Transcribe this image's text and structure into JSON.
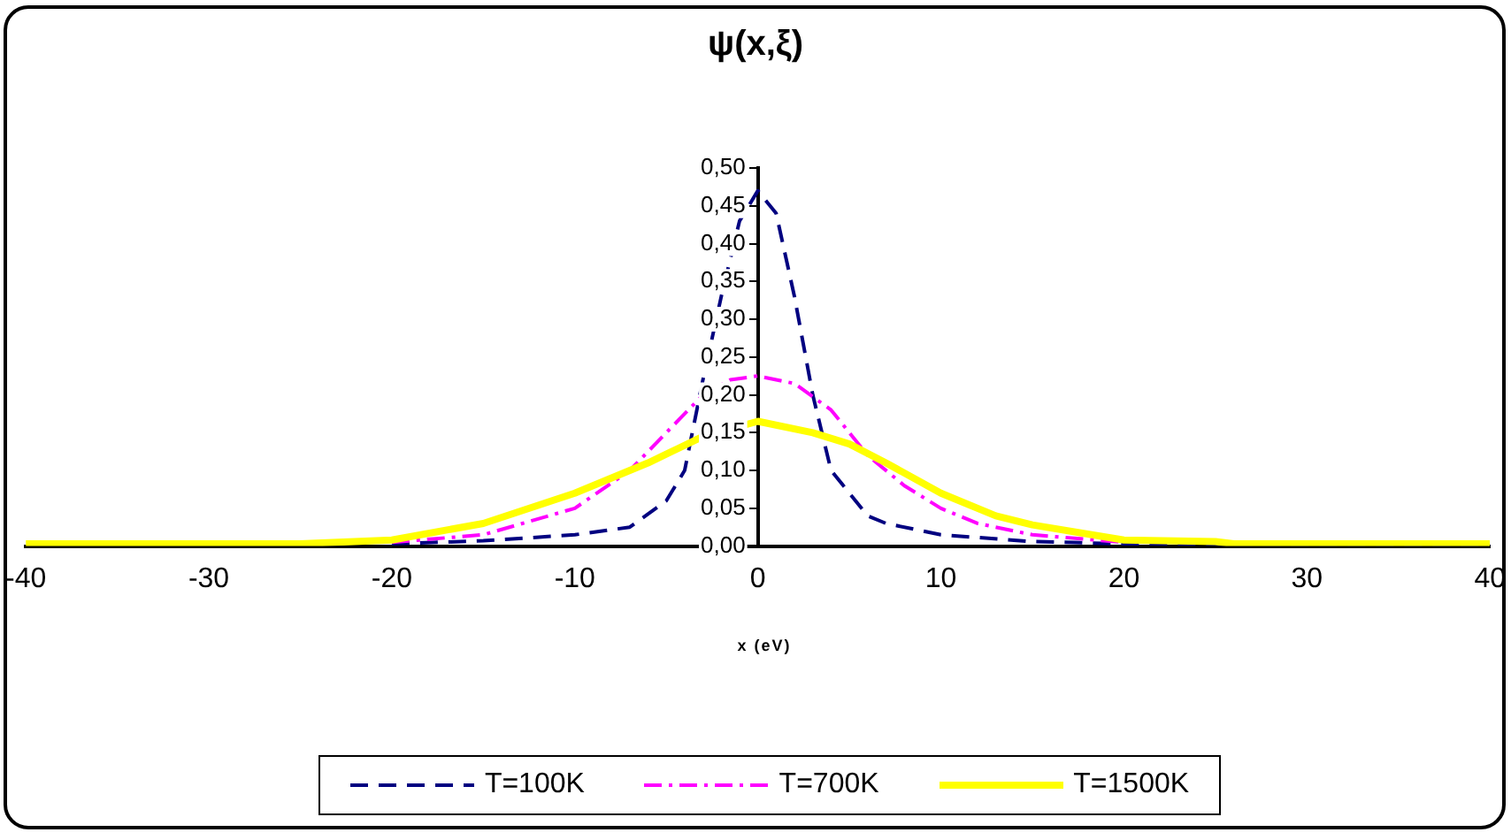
{
  "chart_data": {
    "type": "line",
    "title": "ψ(x,ξ)",
    "xlabel": "x (eV)",
    "xlim": [
      -40,
      40
    ],
    "xticks": [
      -40,
      -30,
      -20,
      -10,
      0,
      10,
      20,
      30,
      40
    ],
    "ylim": [
      0,
      0.5
    ],
    "yticks": [
      {
        "value": 0,
        "label": "0,00"
      },
      {
        "value": 0.05,
        "label": "0,05"
      },
      {
        "value": 0.1,
        "label": "0,10"
      },
      {
        "value": 0.15,
        "label": "0,15"
      },
      {
        "value": 0.2,
        "label": "0,20"
      },
      {
        "value": 0.25,
        "label": "0,25"
      },
      {
        "value": 0.3,
        "label": "0,30"
      },
      {
        "value": 0.35,
        "label": "0,35"
      },
      {
        "value": 0.4,
        "label": "0,40"
      },
      {
        "value": 0.45,
        "label": "0,45"
      },
      {
        "value": 0.5,
        "label": "0,50"
      }
    ],
    "grid": false,
    "legend": "bottom",
    "marker": "none",
    "series": [
      {
        "name": "T=100K",
        "color": "#000080",
        "line_style": "dashed",
        "x": [
          -20,
          -15,
          -10,
          -7,
          -5,
          -4,
          -3,
          -2,
          -1,
          0,
          1,
          2,
          3,
          4,
          5,
          6,
          7,
          10,
          15,
          20,
          40
        ],
        "values": [
          0.003,
          0.007,
          0.015,
          0.025,
          0.06,
          0.1,
          0.22,
          0.33,
          0.43,
          0.47,
          0.44,
          0.33,
          0.2,
          0.1,
          0.07,
          0.04,
          0.03,
          0.015,
          0.006,
          0.003,
          0.002
        ]
      },
      {
        "name": "T=700K",
        "color": "#ff00ff",
        "line_style": "dashdot",
        "x": [
          -20,
          -15,
          -10,
          -7,
          -5,
          -3,
          -1.5,
          0,
          2,
          4,
          6,
          8,
          10,
          12,
          15,
          20
        ],
        "values": [
          0.005,
          0.015,
          0.05,
          0.1,
          0.15,
          0.2,
          0.22,
          0.225,
          0.215,
          0.18,
          0.12,
          0.08,
          0.05,
          0.03,
          0.015,
          0.005
        ]
      },
      {
        "name": "T=1500K",
        "color": "#ffff00",
        "line_style": "solid",
        "x": [
          -40,
          -25,
          -20,
          -15,
          -10,
          -6,
          -3,
          0,
          3,
          5,
          7,
          10,
          13,
          15,
          20,
          25,
          26,
          40
        ],
        "values": [
          0.003,
          0.003,
          0.008,
          0.03,
          0.07,
          0.11,
          0.145,
          0.165,
          0.15,
          0.135,
          0.11,
          0.07,
          0.04,
          0.028,
          0.008,
          0.006,
          0.003,
          0.003
        ]
      }
    ]
  }
}
